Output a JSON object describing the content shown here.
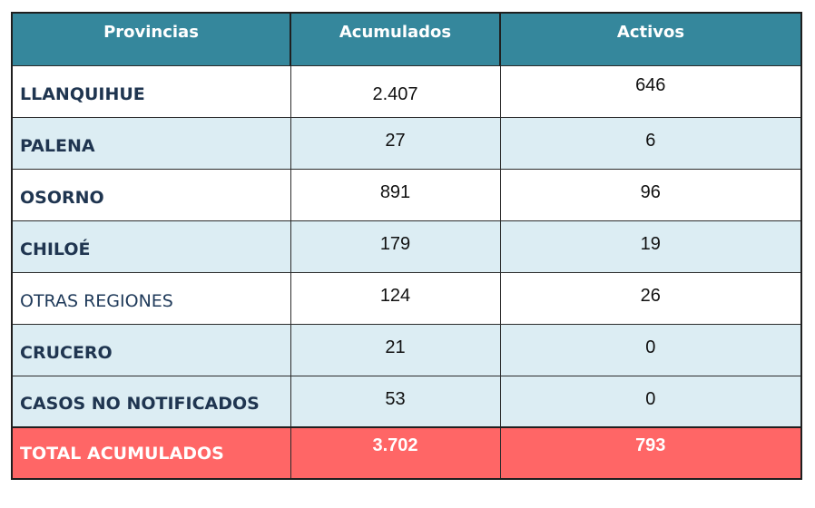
{
  "table": {
    "headers": [
      "Provincias",
      "Acumulados",
      "Activos"
    ],
    "rows": [
      {
        "provincia": "LLANQUIHUE",
        "acumulados": "2.407",
        "activos": "646"
      },
      {
        "provincia": "PALENA",
        "acumulados": "27",
        "activos": "6"
      },
      {
        "provincia": "OSORNO",
        "acumulados": "891",
        "activos": "96"
      },
      {
        "provincia": "CHILOÉ",
        "acumulados": "179",
        "activos": "19"
      },
      {
        "provincia": "OTRAS REGIONES",
        "acumulados": "124",
        "activos": "26"
      },
      {
        "provincia": "CRUCERO",
        "acumulados": "21",
        "activos": "0"
      },
      {
        "provincia": "CASOS NO NOTIFICADOS",
        "acumulados": "53",
        "activos": "0"
      }
    ],
    "total": {
      "label": "TOTAL ACUMULADOS",
      "acumulados": "3.702",
      "activos": "793"
    }
  },
  "colors": {
    "header_bg": "#35879c",
    "row_alt_bg": "#dcedf3",
    "total_bg": "#ff6666",
    "province_text": "#1f3550"
  }
}
